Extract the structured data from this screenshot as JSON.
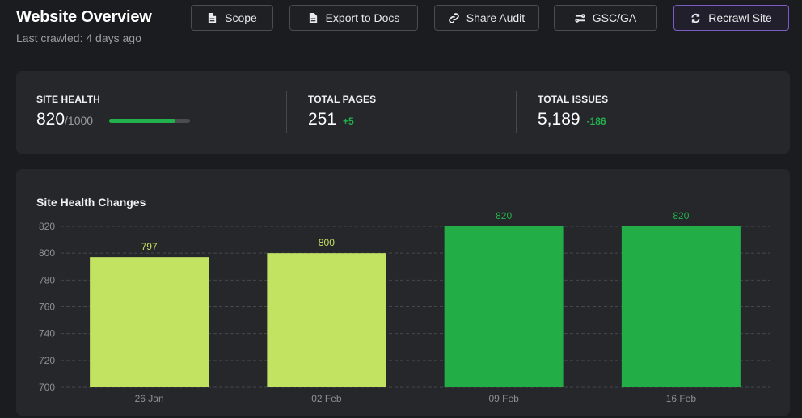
{
  "header": {
    "title": "Website Overview",
    "subtitle": "Last crawled: 4 days ago"
  },
  "toolbar": {
    "scope_label": "Scope",
    "export_label": "Export to Docs",
    "share_label": "Share Audit",
    "gsc_label": "GSC/GA",
    "recrawl_label": "Recrawl Site"
  },
  "stats": {
    "site_health": {
      "label": "SITE HEALTH",
      "value": "820",
      "unit": "/1000",
      "progress": 0.82,
      "bar_color": "#22b14c"
    },
    "total_pages": {
      "label": "TOTAL PAGES",
      "value": "251",
      "delta": "+5"
    },
    "total_issues": {
      "label": "TOTAL ISSUES",
      "value": "5,189",
      "delta": "-186"
    }
  },
  "colors": {
    "accent_green": "#22b14c",
    "light_green": "#c2e262",
    "button_highlight": "#7c5cc4"
  },
  "chart_data": {
    "type": "bar",
    "title": "Site Health Changes",
    "categories": [
      "26 Jan",
      "02 Feb",
      "09 Feb",
      "16 Feb"
    ],
    "values": [
      797,
      800,
      820,
      820
    ],
    "bar_colors": [
      "#c2e262",
      "#c2e262",
      "#22ad47",
      "#22ad47"
    ],
    "label_colors": [
      "#c2e262",
      "#c2e262",
      "#22b14c",
      "#22b14c"
    ],
    "ylim": [
      700,
      820
    ],
    "yticks": [
      700,
      720,
      740,
      760,
      780,
      800,
      820
    ],
    "grid": true,
    "legend": "none"
  }
}
